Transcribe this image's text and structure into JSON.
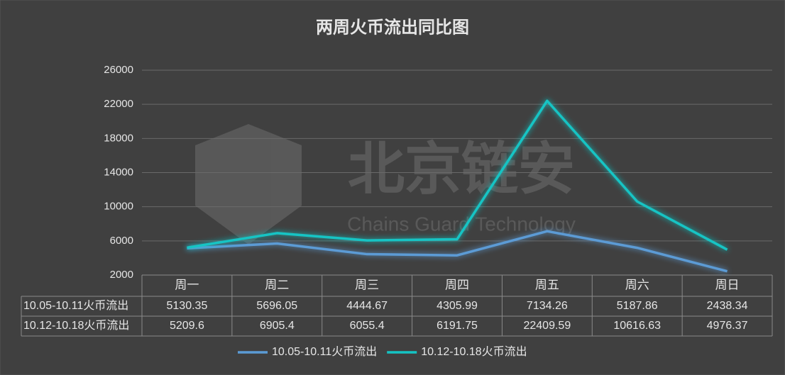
{
  "chart_data": {
    "type": "line",
    "title": "两周火币流出同比图",
    "watermark_text": "北京链安",
    "watermark_subtext": "Chains Guard Technology",
    "categories": [
      "周一",
      "周二",
      "周三",
      "周四",
      "周五",
      "周六",
      "周日"
    ],
    "series": [
      {
        "name": "10.05-10.11火币流出",
        "color": "#5b9bd5",
        "values": [
          5130.35,
          5696.05,
          4444.67,
          4305.99,
          7134.26,
          5187.86,
          2438.34
        ]
      },
      {
        "name": "10.12-10.18火币流出",
        "color": "#14c4c4",
        "values": [
          5209.6,
          6905.4,
          6055.4,
          6191.75,
          22409.59,
          10616.63,
          4976.37
        ]
      }
    ],
    "ylim": [
      2000,
      26000
    ],
    "yticks": [
      2000,
      6000,
      10000,
      14000,
      18000,
      22000,
      26000
    ],
    "grid": true
  }
}
